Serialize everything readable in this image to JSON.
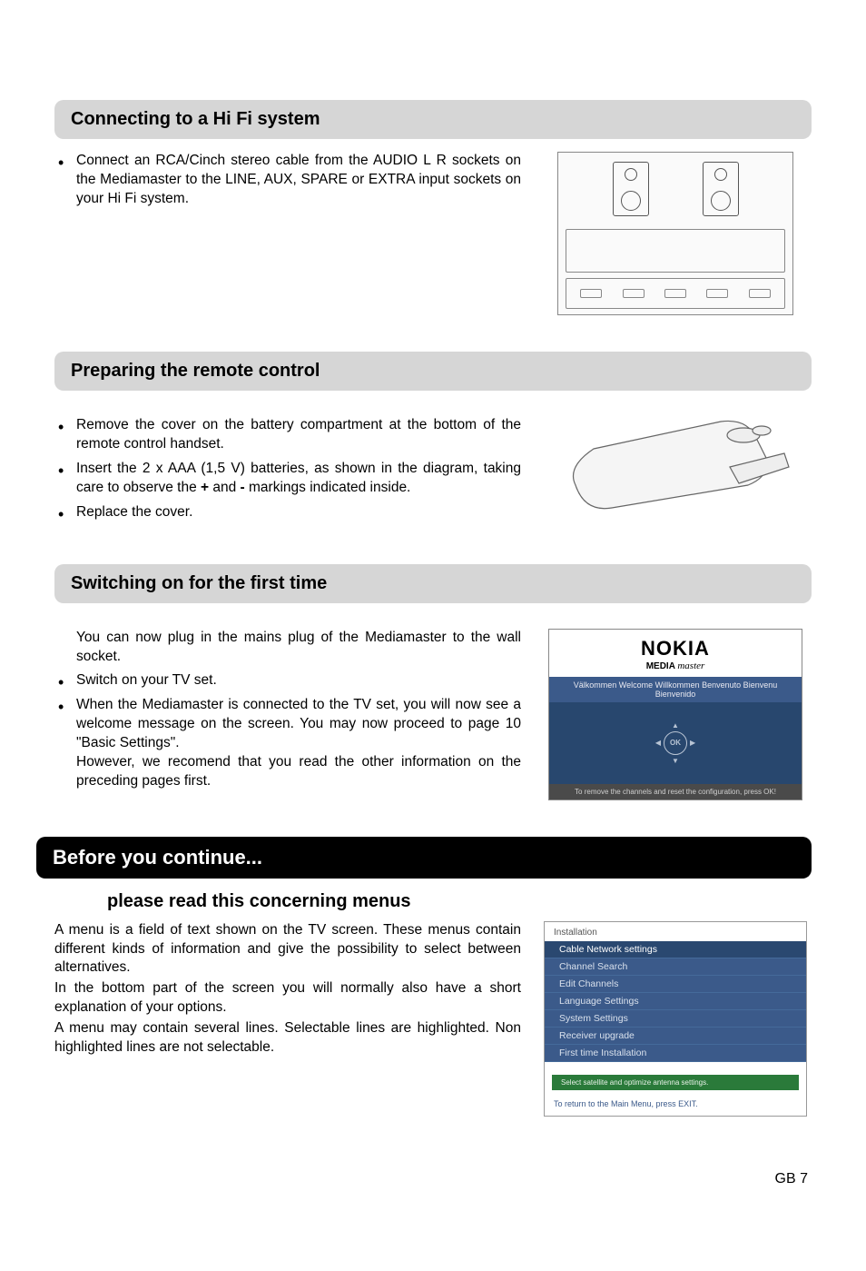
{
  "sections": {
    "hifi": {
      "header": "Connecting to a Hi Fi system",
      "bullet1": "Connect an RCA/Cinch stereo cable from the AUDIO L R sockets on the Mediamaster to the LINE, AUX, SPARE or EXTRA input sockets on your Hi Fi system."
    },
    "remote": {
      "header": "Preparing the remote control",
      "bullet1": "Remove the cover on the battery compartment at the  bottom of the remote control handset.",
      "bullet2_a": "Insert the 2 x AAA (1,5 V) batteries, as shown in the diagram, taking care to observe the ",
      "bullet2_plus": "+",
      "bullet2_mid": " and ",
      "bullet2_minus": "-",
      "bullet2_b": " markings indicated inside.",
      "bullet3": "Replace the cover."
    },
    "firsttime": {
      "header": "Switching on for the first time",
      "para1": "You can now plug in the mains plug of the Mediamaster to the wall socket.",
      "bullet1": "Switch on your TV set.",
      "bullet2": "When the Mediamaster is connected to the TV set, you will now see a welcome message on the screen. You may now proceed to page 10 \"Basic Settings\".",
      "para2": "However, we recomend that you read the other information on the preceding pages first."
    },
    "before": {
      "header": "Before you continue...",
      "subheader": "please read this concerning menus",
      "para1": "A menu is a field of text shown on the TV screen. These menus contain different kinds of information and give the possibility to select between alternatives.",
      "para2": "In the bottom part of the screen you will normally also have a short explanation of your options.",
      "para3": "A menu may contain several lines. Selectable lines are highlighted. Non highlighted lines are not selectable."
    }
  },
  "nokia_screen": {
    "brand": "NOKIA",
    "sub_a": "MEDIA ",
    "sub_b": "master",
    "lang_line1": "Välkommen Welcome Willkommen Benvenuto Bienvenu",
    "lang_line2": "Bienvenido",
    "ok": "OK",
    "footer": "To remove the channels and reset the configuration, press OK!"
  },
  "menu_screen": {
    "title": "Installation",
    "items": [
      "Cable Network settings",
      "Channel Search",
      "Edit Channels",
      "Language Settings",
      "System Settings",
      "Receiver upgrade",
      "First time Installation"
    ],
    "selected_index": 0,
    "hint": "Select satellite and optimize antenna settings.",
    "exit": "To return to the Main Menu, press EXIT."
  },
  "footer": "GB 7",
  "colors": {
    "header_bg": "#d6d6d6",
    "dark_header_bg": "#000000",
    "dark_header_fg": "#ffffff",
    "menu_bg": "#3b5a8a",
    "menu_sel_bg": "#2a4870",
    "menu_hint_bg": "#2a7a3a",
    "nokia_footer_bg": "#4a4a4a"
  },
  "typography": {
    "body_fontsize": 15.5,
    "header_fontsize": 20,
    "dark_header_fontsize": 22
  }
}
